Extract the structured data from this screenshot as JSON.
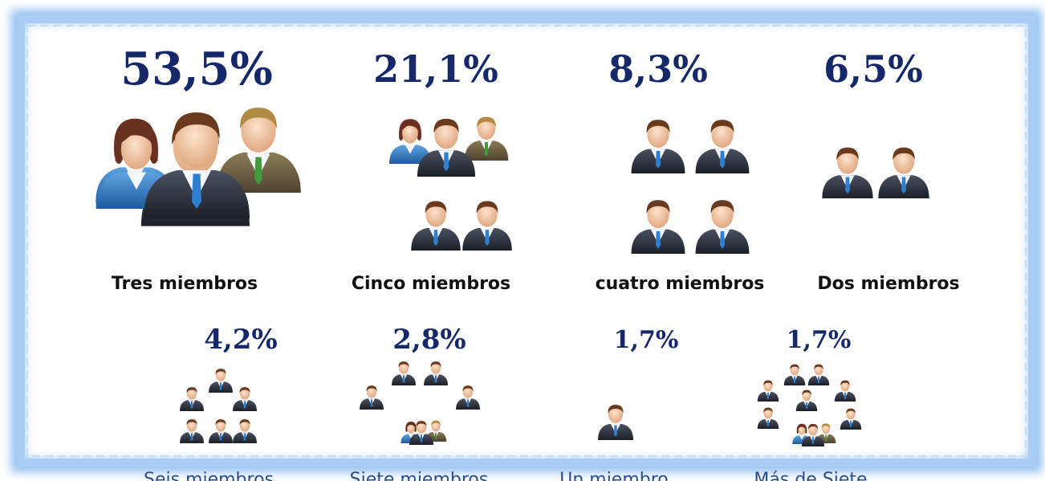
{
  "items": [
    {
      "percent": "53,5%",
      "label": "Tres miembros"
    },
    {
      "percent": "21,1%",
      "label": "Cinco miembros"
    },
    {
      "percent": "8,3%",
      "label": "cuatro miembros"
    },
    {
      "percent": "6,5%",
      "label": "Dos miembros"
    },
    {
      "percent": "4,2%",
      "label": "Seis miembros"
    },
    {
      "percent": "2,8%",
      "label": "Siete miembros"
    },
    {
      "percent": "1,7%",
      "label": "Un  miembro"
    },
    {
      "percent": "1,7%",
      "label": "Más de Siete"
    }
  ]
}
